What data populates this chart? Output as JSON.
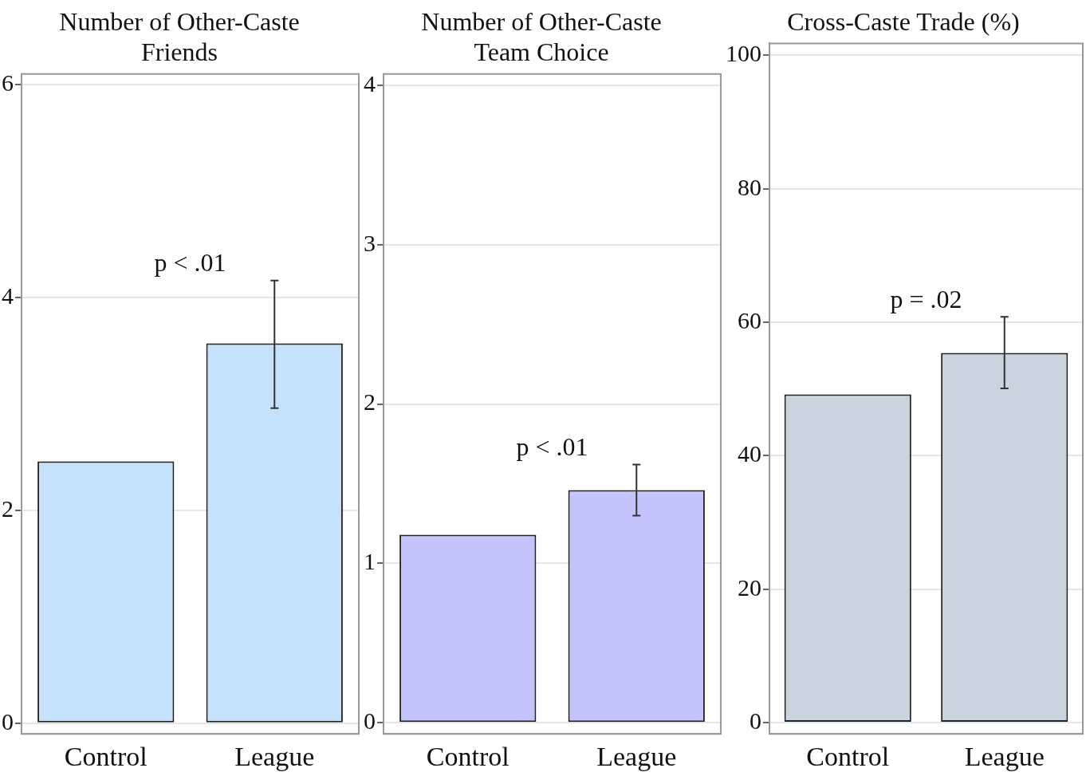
{
  "chart_data": [
    {
      "type": "bar",
      "title": "Number of Other-Caste Friends",
      "categories": [
        "Control",
        "League"
      ],
      "values": [
        2.46,
        3.57
      ],
      "errors": [
        null,
        [
          2.96,
          4.16
        ]
      ],
      "color": "#c4e2fc",
      "ylim": [
        -0.1,
        6.1
      ],
      "yticks": [
        0,
        2,
        4,
        6
      ],
      "grid": "y",
      "legend": false,
      "annotations": [
        "p < .01"
      ]
    },
    {
      "type": "bar",
      "title": "Number of Other-Caste Team Choice",
      "categories": [
        "Control",
        "League"
      ],
      "values": [
        1.18,
        1.46
      ],
      "errors": [
        null,
        [
          1.3,
          1.62
        ]
      ],
      "color": "#c4c4fc",
      "ylim": [
        -0.07,
        4.07
      ],
      "yticks": [
        0,
        1,
        2,
        3,
        4
      ],
      "grid": "y",
      "legend": false,
      "annotations": [
        "p < .01"
      ]
    },
    {
      "type": "bar",
      "title": "Cross-Caste Trade (%)",
      "categories": [
        "Control",
        "League"
      ],
      "values": [
        49.2,
        55.4
      ],
      "errors": [
        null,
        [
          50.1,
          60.8
        ]
      ],
      "color": "#c9d4de",
      "ylim": [
        -1.7,
        101.8
      ],
      "yticks": [
        0,
        20,
        40,
        60,
        80,
        100
      ],
      "grid": "y",
      "legend": false,
      "annotations": [
        "p = .02"
      ]
    }
  ]
}
